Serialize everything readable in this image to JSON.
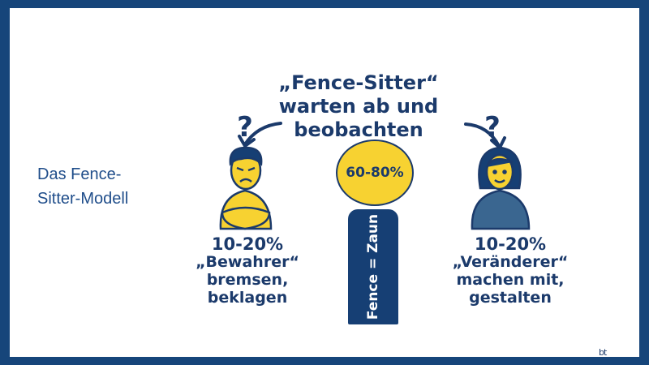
{
  "slide": {
    "side_title_line1": "Das Fence-",
    "side_title_line2": "Sitter-Modell",
    "headline_line1": "„Fence-Sitter“",
    "headline_line2": "warten ab und",
    "headline_line3": "beobachten",
    "center_percent": "60-80%",
    "post_label": "Fence = Zaun",
    "left": {
      "percent": "10-20%",
      "name": "„Bewahrer“",
      "line1": "bremsen,",
      "line2": "beklagen"
    },
    "right": {
      "percent": "10-20%",
      "name": "„Veränderer“",
      "line1": "machen mit,",
      "line2": "gestalten"
    },
    "logo": "bt"
  },
  "colors": {
    "frame": "#16457a",
    "navy": "#1b3a6b",
    "yellow": "#f7d231",
    "blue_shirt": "#3a6690"
  },
  "icons": [
    "question-mark-icon",
    "curved-arrow-icon",
    "angry-man-icon",
    "smiling-woman-icon"
  ]
}
